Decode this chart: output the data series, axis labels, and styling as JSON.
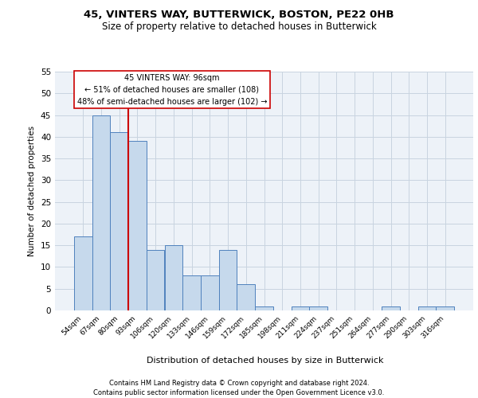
{
  "title1": "45, VINTERS WAY, BUTTERWICK, BOSTON, PE22 0HB",
  "title2": "Size of property relative to detached houses in Butterwick",
  "xlabel": "Distribution of detached houses by size in Butterwick",
  "ylabel": "Number of detached properties",
  "bin_labels": [
    "54sqm",
    "67sqm",
    "80sqm",
    "93sqm",
    "106sqm",
    "120sqm",
    "133sqm",
    "146sqm",
    "159sqm",
    "172sqm",
    "185sqm",
    "198sqm",
    "211sqm",
    "224sqm",
    "237sqm",
    "251sqm",
    "264sqm",
    "277sqm",
    "290sqm",
    "303sqm",
    "316sqm"
  ],
  "bar_values": [
    17,
    45,
    41,
    39,
    14,
    15,
    8,
    8,
    14,
    6,
    1,
    0,
    1,
    1,
    0,
    0,
    0,
    1,
    0,
    1,
    1
  ],
  "bar_color": "#c6d9ec",
  "bar_edge_color": "#4f81bd",
  "vline_color": "#cc0000",
  "ylim": [
    0,
    55
  ],
  "yticks": [
    0,
    5,
    10,
    15,
    20,
    25,
    30,
    35,
    40,
    45,
    50,
    55
  ],
  "annotation_line1": "45 VINTERS WAY: 96sqm",
  "annotation_line2": "← 51% of detached houses are smaller (108)",
  "annotation_line3": "48% of semi-detached houses are larger (102) →",
  "annotation_box_color": "#ffffff",
  "annotation_box_edge": "#cc0000",
  "footer1": "Contains HM Land Registry data © Crown copyright and database right 2024.",
  "footer2": "Contains public sector information licensed under the Open Government Licence v3.0.",
  "grid_color": "#c8d4e0",
  "bg_color": "#edf2f8"
}
